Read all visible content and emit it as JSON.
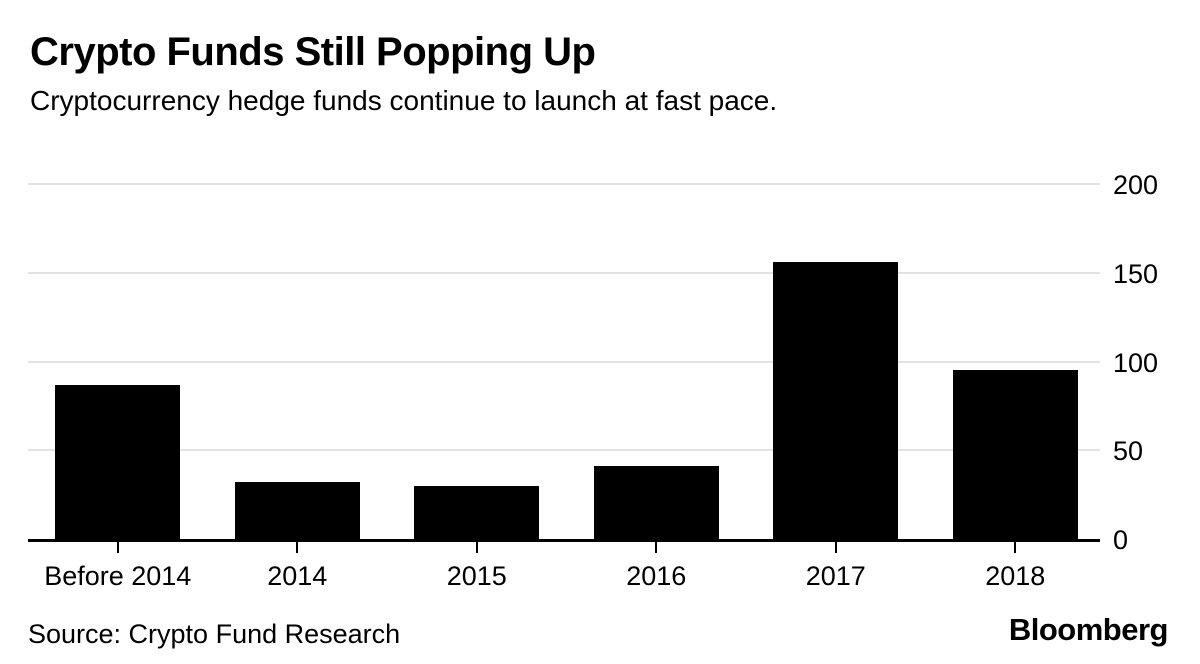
{
  "header": {
    "title": "Crypto Funds Still Popping Up",
    "subtitle": "Cryptocurrency hedge funds continue to launch at fast pace."
  },
  "footer": {
    "source": "Source: Crypto Fund Research",
    "brand": "Bloomberg"
  },
  "colors": {
    "bar": "#000000",
    "gridline": "#e2e2e2",
    "axis": "#000000",
    "text": "#000000",
    "background": "#ffffff"
  },
  "chart_data": {
    "type": "bar",
    "categories": [
      "Before 2014",
      "2014",
      "2015",
      "2016",
      "2017",
      "2018"
    ],
    "values": [
      87,
      32,
      30,
      41,
      156,
      95
    ],
    "title": "Crypto Funds Still Popping Up",
    "subtitle": "Cryptocurrency hedge funds continue to launch at fast pace.",
    "xlabel": "",
    "ylabel": "",
    "ylim": [
      0,
      200
    ],
    "yticks": [
      0,
      50,
      100,
      150,
      200
    ],
    "ytick_side": "right",
    "grid": true,
    "legend": "none",
    "bar_color": "#000000"
  }
}
